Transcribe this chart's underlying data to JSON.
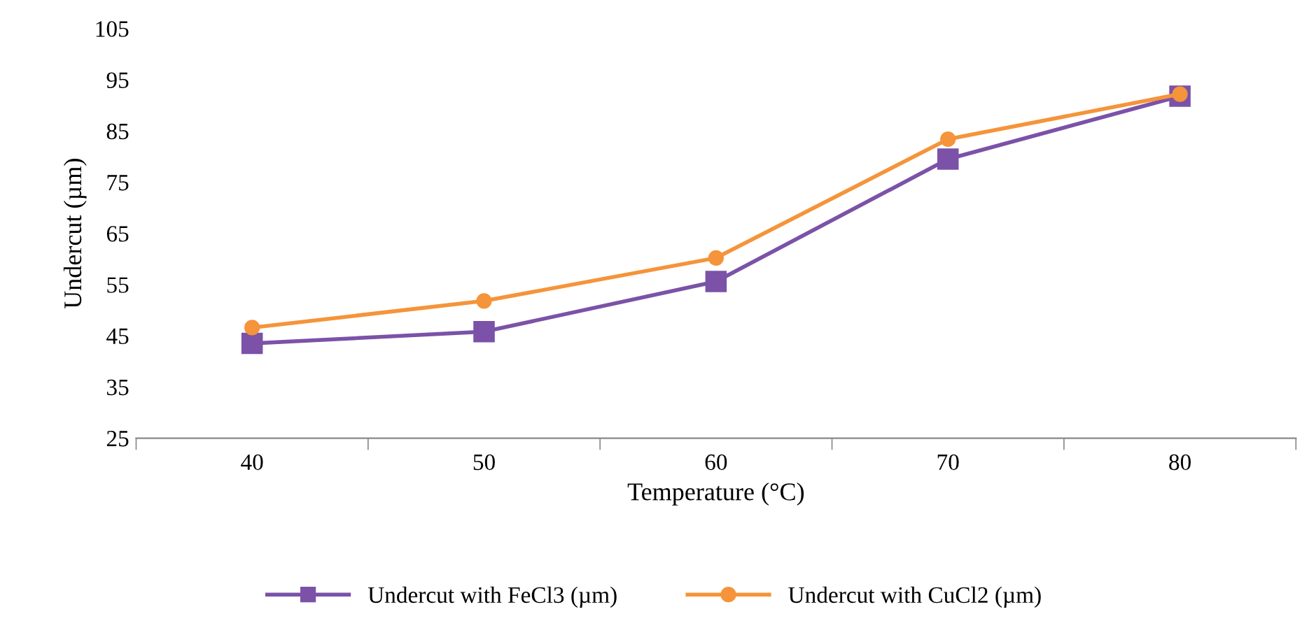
{
  "chart_data": {
    "type": "line",
    "xlabel": "Temperature (°C)",
    "ylabel": "Undercut (µm)",
    "categories": [
      "40",
      "50",
      "60",
      "70",
      "80"
    ],
    "series": [
      {
        "name": "Undercut with FeCl3 (µm)",
        "color": "#7b52a8",
        "marker": "square",
        "values": [
          43.5,
          45.8,
          55.6,
          79.5,
          91.8
        ]
      },
      {
        "name": "Undercut with CuCl2 (µm)",
        "color": "#f5943a",
        "marker": "circle",
        "values": [
          46.6,
          51.8,
          60.2,
          83.4,
          92.2
        ]
      }
    ],
    "ylim": [
      25,
      105
    ],
    "yticks": [
      25,
      35,
      45,
      55,
      65,
      75,
      85,
      95,
      105
    ],
    "grid": false,
    "legend": "bottom",
    "line_style": "solid"
  }
}
